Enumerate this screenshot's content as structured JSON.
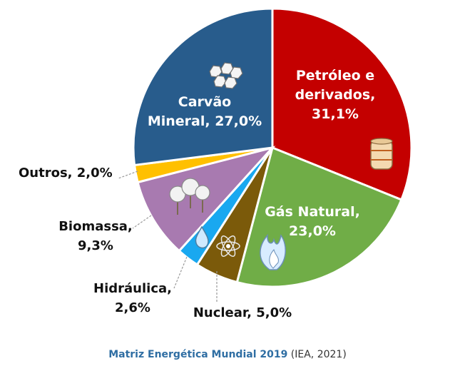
{
  "chart_data": {
    "type": "pie",
    "slices": [
      {
        "id": "petroleo",
        "label_lines": [
          "Petróleo e",
          "derivados,",
          "31,1%"
        ],
        "value": 31.1,
        "color": "#c40000",
        "label_color": "#ffffff",
        "icon": "oil-barrel-icon"
      },
      {
        "id": "gas",
        "label_lines": [
          "Gás Natural,",
          "23,0%"
        ],
        "value": 23.0,
        "color": "#70ad47",
        "label_color": "#ffffff",
        "icon": "flame-icon"
      },
      {
        "id": "nuclear",
        "label_lines": [
          "Nuclear, 5,0%"
        ],
        "value": 5.0,
        "color": "#7b5a0a",
        "label_color": "#111111",
        "icon": "atom-icon"
      },
      {
        "id": "hidraulica",
        "label_lines": [
          "Hidráulica,",
          "2,6%"
        ],
        "value": 2.6,
        "color": "#19a8f0",
        "label_color": "#111111",
        "icon": "water-drop-icon"
      },
      {
        "id": "biomassa",
        "label_lines": [
          "Biomassa,",
          "9,3%"
        ],
        "value": 9.3,
        "color": "#a87ab0",
        "label_color": "#111111",
        "icon": "trees-icon"
      },
      {
        "id": "outros",
        "label_lines": [
          "Outros, 2,0%"
        ],
        "value": 2.0,
        "color": "#ffc000",
        "label_color": "#111111",
        "icon": ""
      },
      {
        "id": "carvao",
        "label_lines": [
          "Carvão",
          "Mineral, 27,0%"
        ],
        "value": 27.0,
        "color": "#285c8c",
        "label_color": "#ffffff",
        "icon": "coal-icon"
      }
    ],
    "start": "top",
    "direction": "clockwise",
    "legend": "none"
  },
  "caption": {
    "title": "Matriz Energética Mundial 2019",
    "source": "(IEA, 2021)"
  }
}
